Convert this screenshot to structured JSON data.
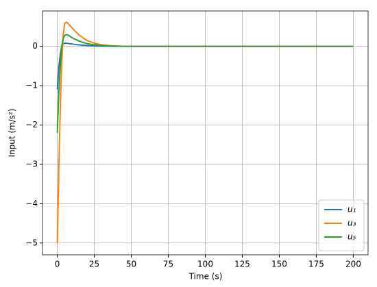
{
  "chart_data": {
    "type": "line",
    "xlabel": "Time (s)",
    "ylabel": "Input (m/s²)",
    "x": [
      0,
      1,
      2,
      3,
      4,
      5,
      6,
      7,
      8,
      10,
      12,
      15,
      20,
      25,
      30,
      35,
      40,
      45,
      50,
      60,
      80,
      100,
      150,
      200
    ],
    "series": [
      {
        "name": "u₁",
        "color": "#1f77b4",
        "values": [
          -1.1,
          -0.55,
          -0.2,
          0,
          0.06,
          0.08,
          0.08,
          0.075,
          0.07,
          0.06,
          0.05,
          0.035,
          0.02,
          0.01,
          0.005,
          0.002,
          0,
          0,
          0,
          0,
          0,
          0,
          0,
          0
        ]
      },
      {
        "name": "u₃",
        "color": "#ff7f0e",
        "values": [
          -5,
          -3.2,
          -1.6,
          -0.4,
          0.3,
          0.58,
          0.62,
          0.6,
          0.55,
          0.47,
          0.39,
          0.28,
          0.15,
          0.08,
          0.04,
          0.02,
          0.01,
          0,
          0,
          0,
          0,
          0,
          0,
          0
        ]
      },
      {
        "name": "u₅",
        "color": "#2ca02c",
        "values": [
          -2.2,
          -1.2,
          -0.5,
          0,
          0.2,
          0.28,
          0.3,
          0.29,
          0.27,
          0.22,
          0.18,
          0.13,
          0.07,
          0.04,
          0.02,
          0.01,
          0.005,
          0,
          0,
          0,
          0,
          0,
          0,
          0
        ]
      }
    ],
    "xlim": [
      -10,
      210
    ],
    "xticks": [
      0,
      25,
      50,
      75,
      100,
      125,
      150,
      175,
      200
    ],
    "ylim": [
      -5.3,
      0.9
    ],
    "yticks": [
      {
        "value": -5,
        "label": "−5"
      },
      {
        "value": -4,
        "label": "−4"
      },
      {
        "value": -3,
        "label": "−3"
      },
      {
        "value": -2,
        "label": "−2"
      },
      {
        "value": -1,
        "label": "−1"
      },
      0
    ],
    "grid": true,
    "legend": "lower right"
  }
}
